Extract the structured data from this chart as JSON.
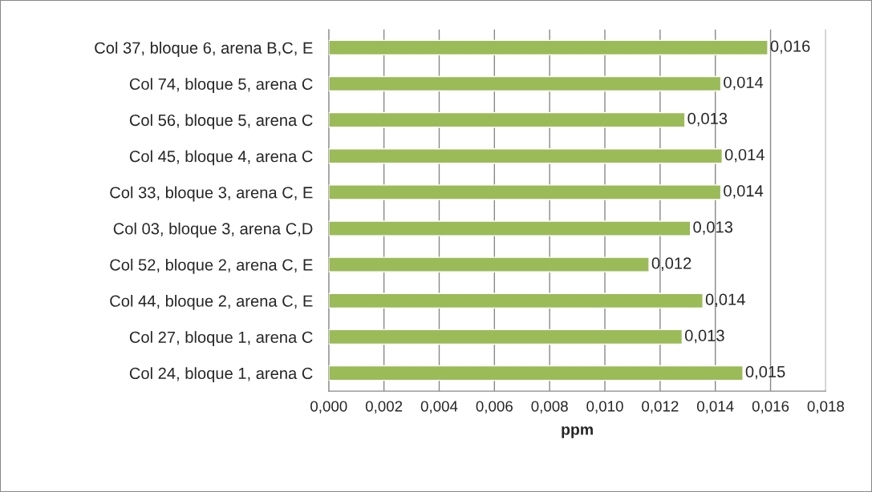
{
  "chart_data": {
    "type": "bar",
    "orientation": "horizontal",
    "xlabel": "ppm",
    "categories": [
      "Col 37, bloque 6, arena B,C, E",
      "Col 74, bloque 5, arena C",
      "Col 56, bloque 5, arena C",
      "Col 45, bloque 4, arena C",
      "Col 33, bloque 3, arena C, E",
      "Col 03, bloque 3, arena C,D",
      "Col 52, bloque 2, arena C, E",
      "Col 44, bloque 2, arena C, E",
      "Col 27, bloque 1, arena C",
      "Col 24, bloque 1, arena C"
    ],
    "values": [
      0.0159,
      0.0142,
      0.0129,
      0.01425,
      0.0142,
      0.0131,
      0.0116,
      0.01355,
      0.0128,
      0.015
    ],
    "value_labels": [
      "0,016",
      "0,014",
      "0,013",
      "0,014",
      "0,014",
      "0,013",
      "0,012",
      "0,014",
      "0,013",
      "0,015"
    ],
    "color": "#9bbb59",
    "xlim": [
      0,
      0.018
    ],
    "xticks": [
      {
        "value": 0,
        "label": "0,000"
      },
      {
        "value": 0.002,
        "label": "0,002"
      },
      {
        "value": 0.004,
        "label": "0,004"
      },
      {
        "value": 0.006,
        "label": "0,006"
      },
      {
        "value": 0.008,
        "label": "0,008"
      },
      {
        "value": 0.01,
        "label": "0,010"
      },
      {
        "value": 0.012,
        "label": "0,012"
      },
      {
        "value": 0.014,
        "label": "0,014"
      },
      {
        "value": 0.016,
        "label": "0,016"
      },
      {
        "value": 0.018,
        "label": "0,018"
      }
    ],
    "grid": "x",
    "legend": false
  }
}
